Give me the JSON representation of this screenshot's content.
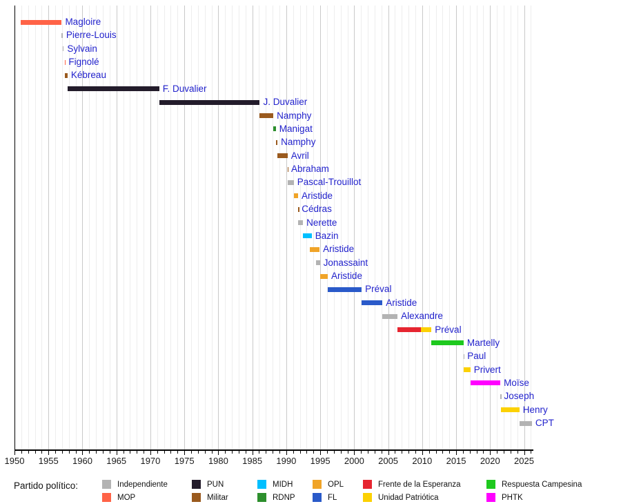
{
  "chart_data": {
    "type": "bar",
    "subtype": "timeline-gantt",
    "title": "",
    "xlabel": "",
    "ylabel": "",
    "xlim": [
      1950,
      2026.2
    ],
    "x_ticks": [
      1950,
      1955,
      1960,
      1965,
      1970,
      1975,
      1980,
      1985,
      1990,
      1995,
      2000,
      2005,
      2010,
      2015,
      2020,
      2025
    ],
    "grid": "vertical, every year, darker every 5 years",
    "legend_position": "bottom",
    "palette": {
      "independiente": "#b3b3b3",
      "mop": "#ff6347",
      "pun": "#231c2b",
      "militar": "#9a5a1e",
      "midh": "#00bfff",
      "rdnp": "#2d8f2d",
      "opl": "#f0a428",
      "fl": "#2a5ac9",
      "frente": "#e62530",
      "unidad": "#fcd103",
      "respuesta": "#1ec91e",
      "phtk": "#ff00ff"
    },
    "rows": [
      {
        "label": "Magloire",
        "color": "mop",
        "start": 1950.93,
        "end": 1956.95
      },
      {
        "label": "Pierre-Louis",
        "color": "independiente",
        "start": 1956.95,
        "end": 1957.1
      },
      {
        "label": "Sylvain",
        "color": "independiente",
        "start": 1957.1,
        "end": 1957.25
      },
      {
        "label": "Fignolé",
        "color": "mop",
        "start": 1957.4,
        "end": 1957.45
      },
      {
        "label": "Kébreau",
        "color": "militar",
        "start": 1957.45,
        "end": 1957.81
      },
      {
        "label": "F. Duvalier",
        "color": "pun",
        "start": 1957.81,
        "end": 1971.3
      },
      {
        "label": "J. Duvalier",
        "color": "pun",
        "start": 1971.3,
        "end": 1986.1
      },
      {
        "label": "Namphy",
        "color": "militar",
        "start": 1986.1,
        "end": 1988.1
      },
      {
        "label": "Manigat",
        "color": "rdnp",
        "start": 1988.1,
        "end": 1988.47
      },
      {
        "label": "Namphy",
        "color": "militar",
        "start": 1988.47,
        "end": 1988.71
      },
      {
        "label": "Avril",
        "color": "militar",
        "start": 1988.71,
        "end": 1990.19
      },
      {
        "label": "Abraham",
        "color": "militar",
        "start": 1990.19,
        "end": 1990.22
      },
      {
        "label": "Pascal-Trouillot",
        "color": "independiente",
        "start": 1990.22,
        "end": 1991.1
      },
      {
        "label": "Aristide",
        "color": "opl",
        "start": 1991.1,
        "end": 1991.74
      },
      {
        "label": "Cédras",
        "color": "militar",
        "start": 1991.74,
        "end": 1991.77
      },
      {
        "label": "Nerette",
        "color": "independiente",
        "start": 1991.77,
        "end": 1992.46
      },
      {
        "label": "Bazin",
        "color": "midh",
        "start": 1992.46,
        "end": 1993.75
      },
      {
        "label": "Aristide",
        "color": "opl",
        "start": 1993.45,
        "end": 1994.9
      },
      {
        "label": "Jonassaint",
        "color": "independiente",
        "start": 1994.4,
        "end": 1994.95
      },
      {
        "label": "Aristide",
        "color": "opl",
        "start": 1994.95,
        "end": 1996.1
      },
      {
        "label": "Préval",
        "color": "fl",
        "start": 1996.1,
        "end": 2001.1
      },
      {
        "label": "Aristide",
        "color": "fl",
        "start": 2001.1,
        "end": 2004.16
      },
      {
        "label": "Alexandre",
        "color": "independiente",
        "start": 2004.16,
        "end": 2006.37
      },
      {
        "label": "Préval",
        "color": "frente",
        "start": 2006.37,
        "end": 2011.37,
        "segments": [
          {
            "color": "frente",
            "start": 2006.37,
            "end": 2009.85
          },
          {
            "color": "unidad",
            "start": 2009.85,
            "end": 2011.37
          }
        ]
      },
      {
        "label": "Martelly",
        "color": "respuesta",
        "start": 2011.37,
        "end": 2016.1
      },
      {
        "label": "Paul",
        "color": "independiente",
        "start": 2016.1,
        "end": 2016.14
      },
      {
        "label": "Privert",
        "color": "unidad",
        "start": 2016.14,
        "end": 2017.1
      },
      {
        "label": "Moïse",
        "color": "phtk",
        "start": 2017.1,
        "end": 2021.51
      },
      {
        "label": "Joseph",
        "color": "independiente",
        "start": 2021.51,
        "end": 2021.55
      },
      {
        "label": "Henry",
        "color": "unidad",
        "start": 2021.55,
        "end": 2024.31
      },
      {
        "label": "CPT",
        "color": "independiente",
        "start": 2024.31,
        "end": 2026.15
      }
    ]
  },
  "legend": {
    "title": "Partido político:",
    "items": [
      {
        "label": "Independiente",
        "color_key": "independiente",
        "col": 0,
        "row": 0
      },
      {
        "label": "MOP",
        "color_key": "mop",
        "col": 0,
        "row": 1
      },
      {
        "label": "PUN",
        "color_key": "pun",
        "col": 1,
        "row": 0
      },
      {
        "label": "Militar",
        "color_key": "militar",
        "col": 1,
        "row": 1
      },
      {
        "label": "MIDH",
        "color_key": "midh",
        "col": 2,
        "row": 0
      },
      {
        "label": "RDNP",
        "color_key": "rdnp",
        "col": 2,
        "row": 1
      },
      {
        "label": "OPL",
        "color_key": "opl",
        "col": 3,
        "row": 0
      },
      {
        "label": "FL",
        "color_key": "fl",
        "col": 3,
        "row": 1
      },
      {
        "label": "Frente de la Esperanza",
        "color_key": "frente",
        "col": 4,
        "row": 0
      },
      {
        "label": "Unidad Patriótica",
        "color_key": "unidad",
        "col": 4,
        "row": 1
      },
      {
        "label": "Respuesta Campesina",
        "color_key": "respuesta",
        "col": 5,
        "row": 0
      },
      {
        "label": "PHTK",
        "color_key": "phtk",
        "col": 5,
        "row": 1
      }
    ]
  }
}
